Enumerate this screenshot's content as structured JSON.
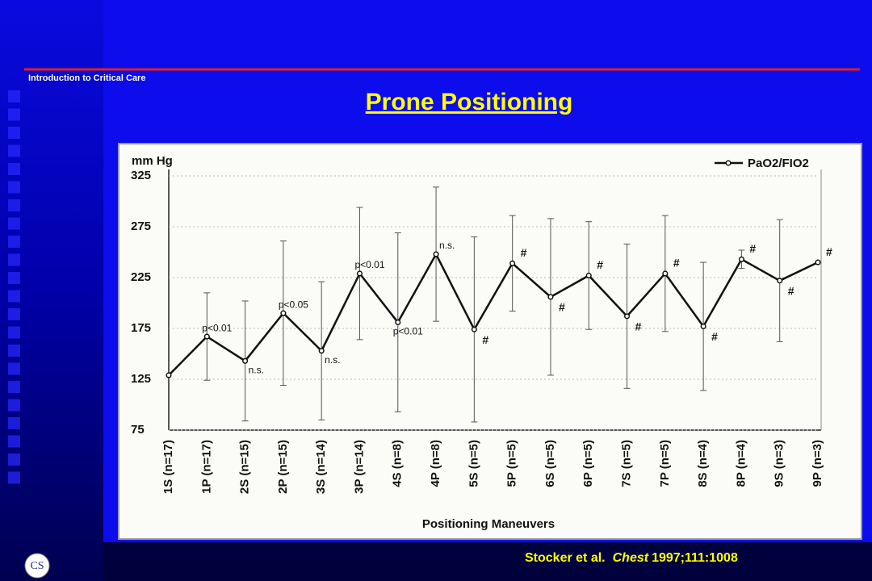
{
  "header": "Introduction to Critical Care",
  "logo": "CS",
  "citation": {
    "authors": "Stocker et al.",
    "journal": "Chest",
    "ref": "1997;111:1008"
  },
  "chart_data": {
    "type": "line",
    "title": "Prone Positioning",
    "y_label": "mm Hg",
    "x_label": "Positioning Maneuvers",
    "categories": [
      "1S (n=17)",
      "1P (n=17)",
      "2S (n=15)",
      "2P (n=15)",
      "3S (n=14)",
      "3P (n=14)",
      "4S (n=8)",
      "4P (n=8)",
      "5S (n=5)",
      "5P (n=5)",
      "6S (n=5)",
      "6P (n=5)",
      "7S (n=5)",
      "7P (n=5)",
      "8S (n=4)",
      "8P (n=4)",
      "9S (n=3)",
      "9P (n=3)"
    ],
    "series": [
      {
        "name": "PaO2/FIO2",
        "color": "#111111",
        "values": [
          129,
          167,
          143,
          190,
          153,
          229,
          181,
          248,
          174,
          239,
          206,
          227,
          187,
          229,
          177,
          243,
          222,
          240
        ],
        "errors": [
          null,
          43,
          59,
          71,
          68,
          65,
          88,
          66,
          91,
          47,
          77,
          53,
          71,
          57,
          63,
          9,
          60,
          null
        ],
        "point_labels": [
          null,
          "p<0.01",
          "n.s.",
          "p<0.05",
          "n.s.",
          "p<0.01",
          "p<0.01",
          "n.s.",
          "#",
          "#",
          "#",
          "#",
          "#",
          "#",
          "#",
          "#",
          "#",
          "#"
        ]
      }
    ],
    "ylim": [
      75,
      325
    ],
    "yticks": [
      75,
      125,
      175,
      225,
      275,
      325
    ],
    "grid": true,
    "legend": "upper right"
  }
}
